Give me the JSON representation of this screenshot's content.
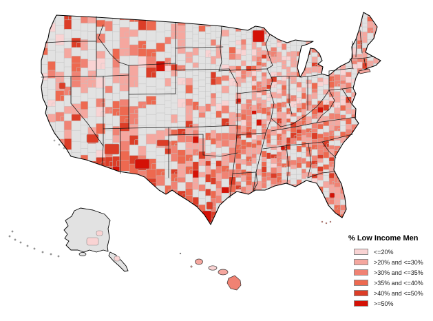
{
  "legend": {
    "title": "% Low Income Men",
    "items": [
      {
        "label": "<=20%",
        "color": "#F9D3D3"
      },
      {
        "label": ">20% and <=30%",
        "color": "#F5A79F"
      },
      {
        "label": ">30% and <=35%",
        "color": "#F08273"
      },
      {
        "label": ">35% and <=40%",
        "color": "#ED6950"
      },
      {
        "label": ">40% and <=50%",
        "color": "#DC3D27"
      },
      {
        "label": ">=50%",
        "color": "#D41106"
      }
    ]
  },
  "map": {
    "type": "choropleth",
    "base_fill": "#E2E2E2",
    "county_border": "#C2C2C2",
    "state_border": "#1A1A1A",
    "outline_border": "#000000"
  }
}
